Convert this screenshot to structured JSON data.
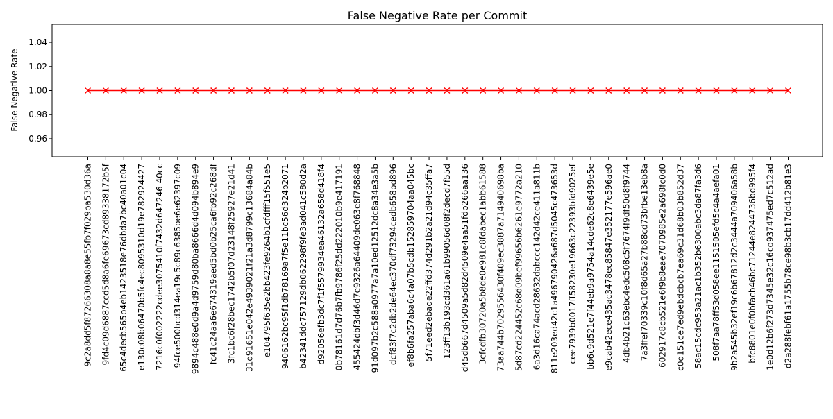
{
  "chart_data": {
    "type": "line",
    "title": "False Negative Rate per Commit",
    "xlabel": "",
    "ylabel": "False Negative Rate",
    "ylim": [
      0.945,
      1.055
    ],
    "yticks": [
      0.96,
      0.98,
      1.0,
      1.02,
      1.04
    ],
    "ytick_labels": [
      "0.96",
      "0.98",
      "1.00",
      "1.02",
      "1.04"
    ],
    "grid": false,
    "legend": "none",
    "categories": [
      "9c2a8dd5f87266308a8a8e55fb7f029ba530d36a",
      "9fd4c09d6887ccd5d8a6fe69673cd89338172b5f",
      "65c4decb565b4eb1423518e76dbda7bc40a01c04",
      "e130c08b06470b5fc4ec8095310d19e782924427",
      "7216c0f002222cdee3075410f7432d647246 40cc",
      "94fce500bcd314ea19c5c89c6385be6e62397c09",
      "9894c488e0d9a4d9759d80ba8666d4d094b894e9",
      "fc41c24aa6e674319aed5bd0b25ca6fb92c268df",
      "3fc1bc6f28bec1742b5f07d23148f25927e21d41",
      "31d91651e042e4939021f21a3d8799c13684a84b",
      "e104795f635e2bb423fe9264b1cfdfff15f551e5",
      "9406162bc95f1db78169a7f5e11bc56d324b2071",
      "b42341ddc757129db062298f9fe3ad041c580d2a",
      "d92056efb3dc7f1f5579934ea46132a658d418f4",
      "0b78161d7d76b7fb9786f25dd222010b9e417191",
      "455424dbf3d46d7e9326a64409de063e8f768848",
      "91d097b2c588a0977a7a10ed12512dc8a34e3a5b",
      "dcf83f7c2db2de64ec370df73294cedb658bd896",
      "ef8b6fa257aba6c4a07b5cdb152859704aa045bc",
      "5f71eed2ebade22ffd374d291b2a21d94c35ffa7",
      "123ff13b193cd361a61b99056d08f2decd7f55d",
      "d45db667d4509a5d82d4509e4aa51fdb266aa136",
      "3cfcdfb30720a5b8de0e981c8fdabec1abb61588",
      "73aa744b7029556430f409ec3887a714940698ba",
      "5d87cd224452c68d09bef99656b6261e9772a210",
      "6a3d16ca74acd28632dabccc142d42ce411a811b",
      "811e203ed42c1a496790426a687d5045c473653d",
      "cee7939b0017ff58230e19663c22393bfd9025ef",
      "bb6c9d521e7f44eb9a9754a14cde62c8e6439e5e",
      "e9cab42ece435ac3478ec85847e352177e596ae0",
      "4db4b21c63ebc4edc508c5f7674f9df50d8f9744",
      "7a3ffef70339c10f8d65a27b88cd73bfbe13eb8a",
      "602917c8cb521e6f9b8eae7070985e2a698fc0d0",
      "c0d151ce7ed9ebdcbcb7ea69c31d68b03b852d37",
      "58ac15cdc953a21ac1b352b6300abc3da87fa3d6",
      "508f7aa78ff53d058ee1151505efd5c4a4aefa01",
      "9b2a545b32ef19c6b67812d2c3444a709406a58b",
      "bfc8801e0f0bfacb46bc71244e8244736bd995f4",
      "1e0d12b6f273d7345e32c16cd937475ed7c512ad",
      "d2a288febf61a1755b78ce98b3cb17dd412b81e3"
    ],
    "series": [
      {
        "color": "#ff0000",
        "marker": "x",
        "values": [
          1,
          1,
          1,
          1,
          1,
          1,
          1,
          1,
          1,
          1,
          1,
          1,
          1,
          1,
          1,
          1,
          1,
          1,
          1,
          1,
          1,
          1,
          1,
          1,
          1,
          1,
          1,
          1,
          1,
          1,
          1,
          1,
          1,
          1,
          1,
          1,
          1,
          1,
          1,
          1
        ]
      }
    ]
  }
}
